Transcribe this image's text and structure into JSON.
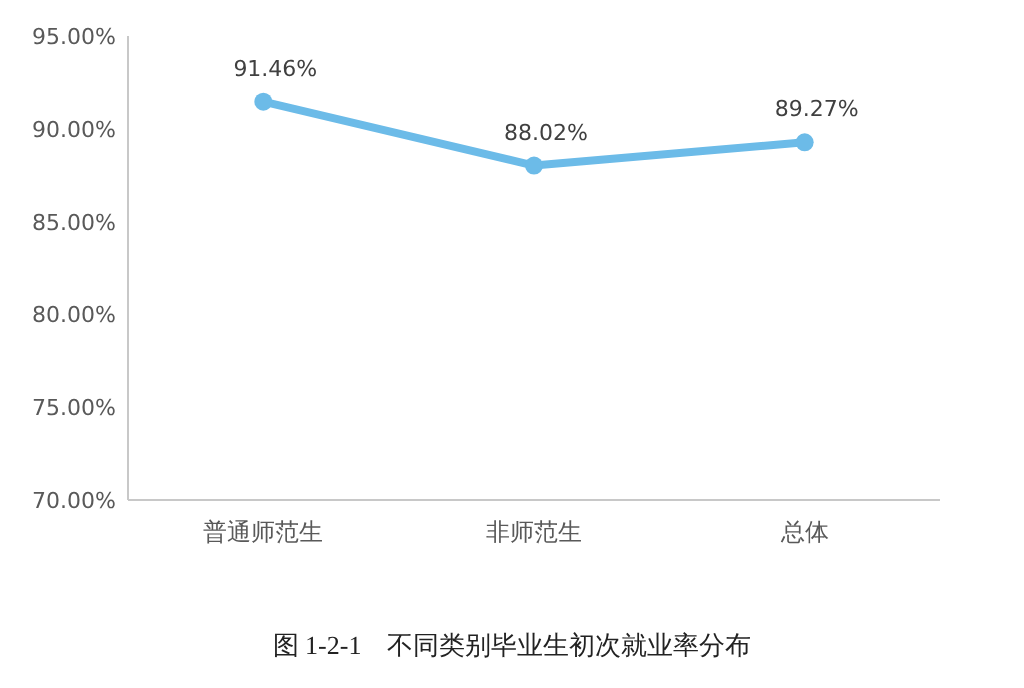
{
  "chart_data": {
    "type": "line",
    "title": "图 1-2-1　不同类别毕业生初次就业率分布",
    "categories": [
      "普通师范生",
      "非师范生",
      "总体"
    ],
    "series": [
      {
        "color": "#6cbbe8",
        "values": [
          91.46,
          88.02,
          89.27
        ],
        "value_labels": [
          "91.46%",
          "88.02%",
          "89.27%"
        ]
      }
    ],
    "ylim": [
      70,
      95
    ],
    "yticks": [
      {
        "value": 70,
        "label": "70.00%"
      },
      {
        "value": 75,
        "label": "75.00%"
      },
      {
        "value": 80,
        "label": "80.00%"
      },
      {
        "value": 85,
        "label": "85.00%"
      },
      {
        "value": 90,
        "label": "90.00%"
      },
      {
        "value": 95,
        "label": "95.00%"
      }
    ],
    "marker": "circle",
    "line_style": "solid"
  }
}
